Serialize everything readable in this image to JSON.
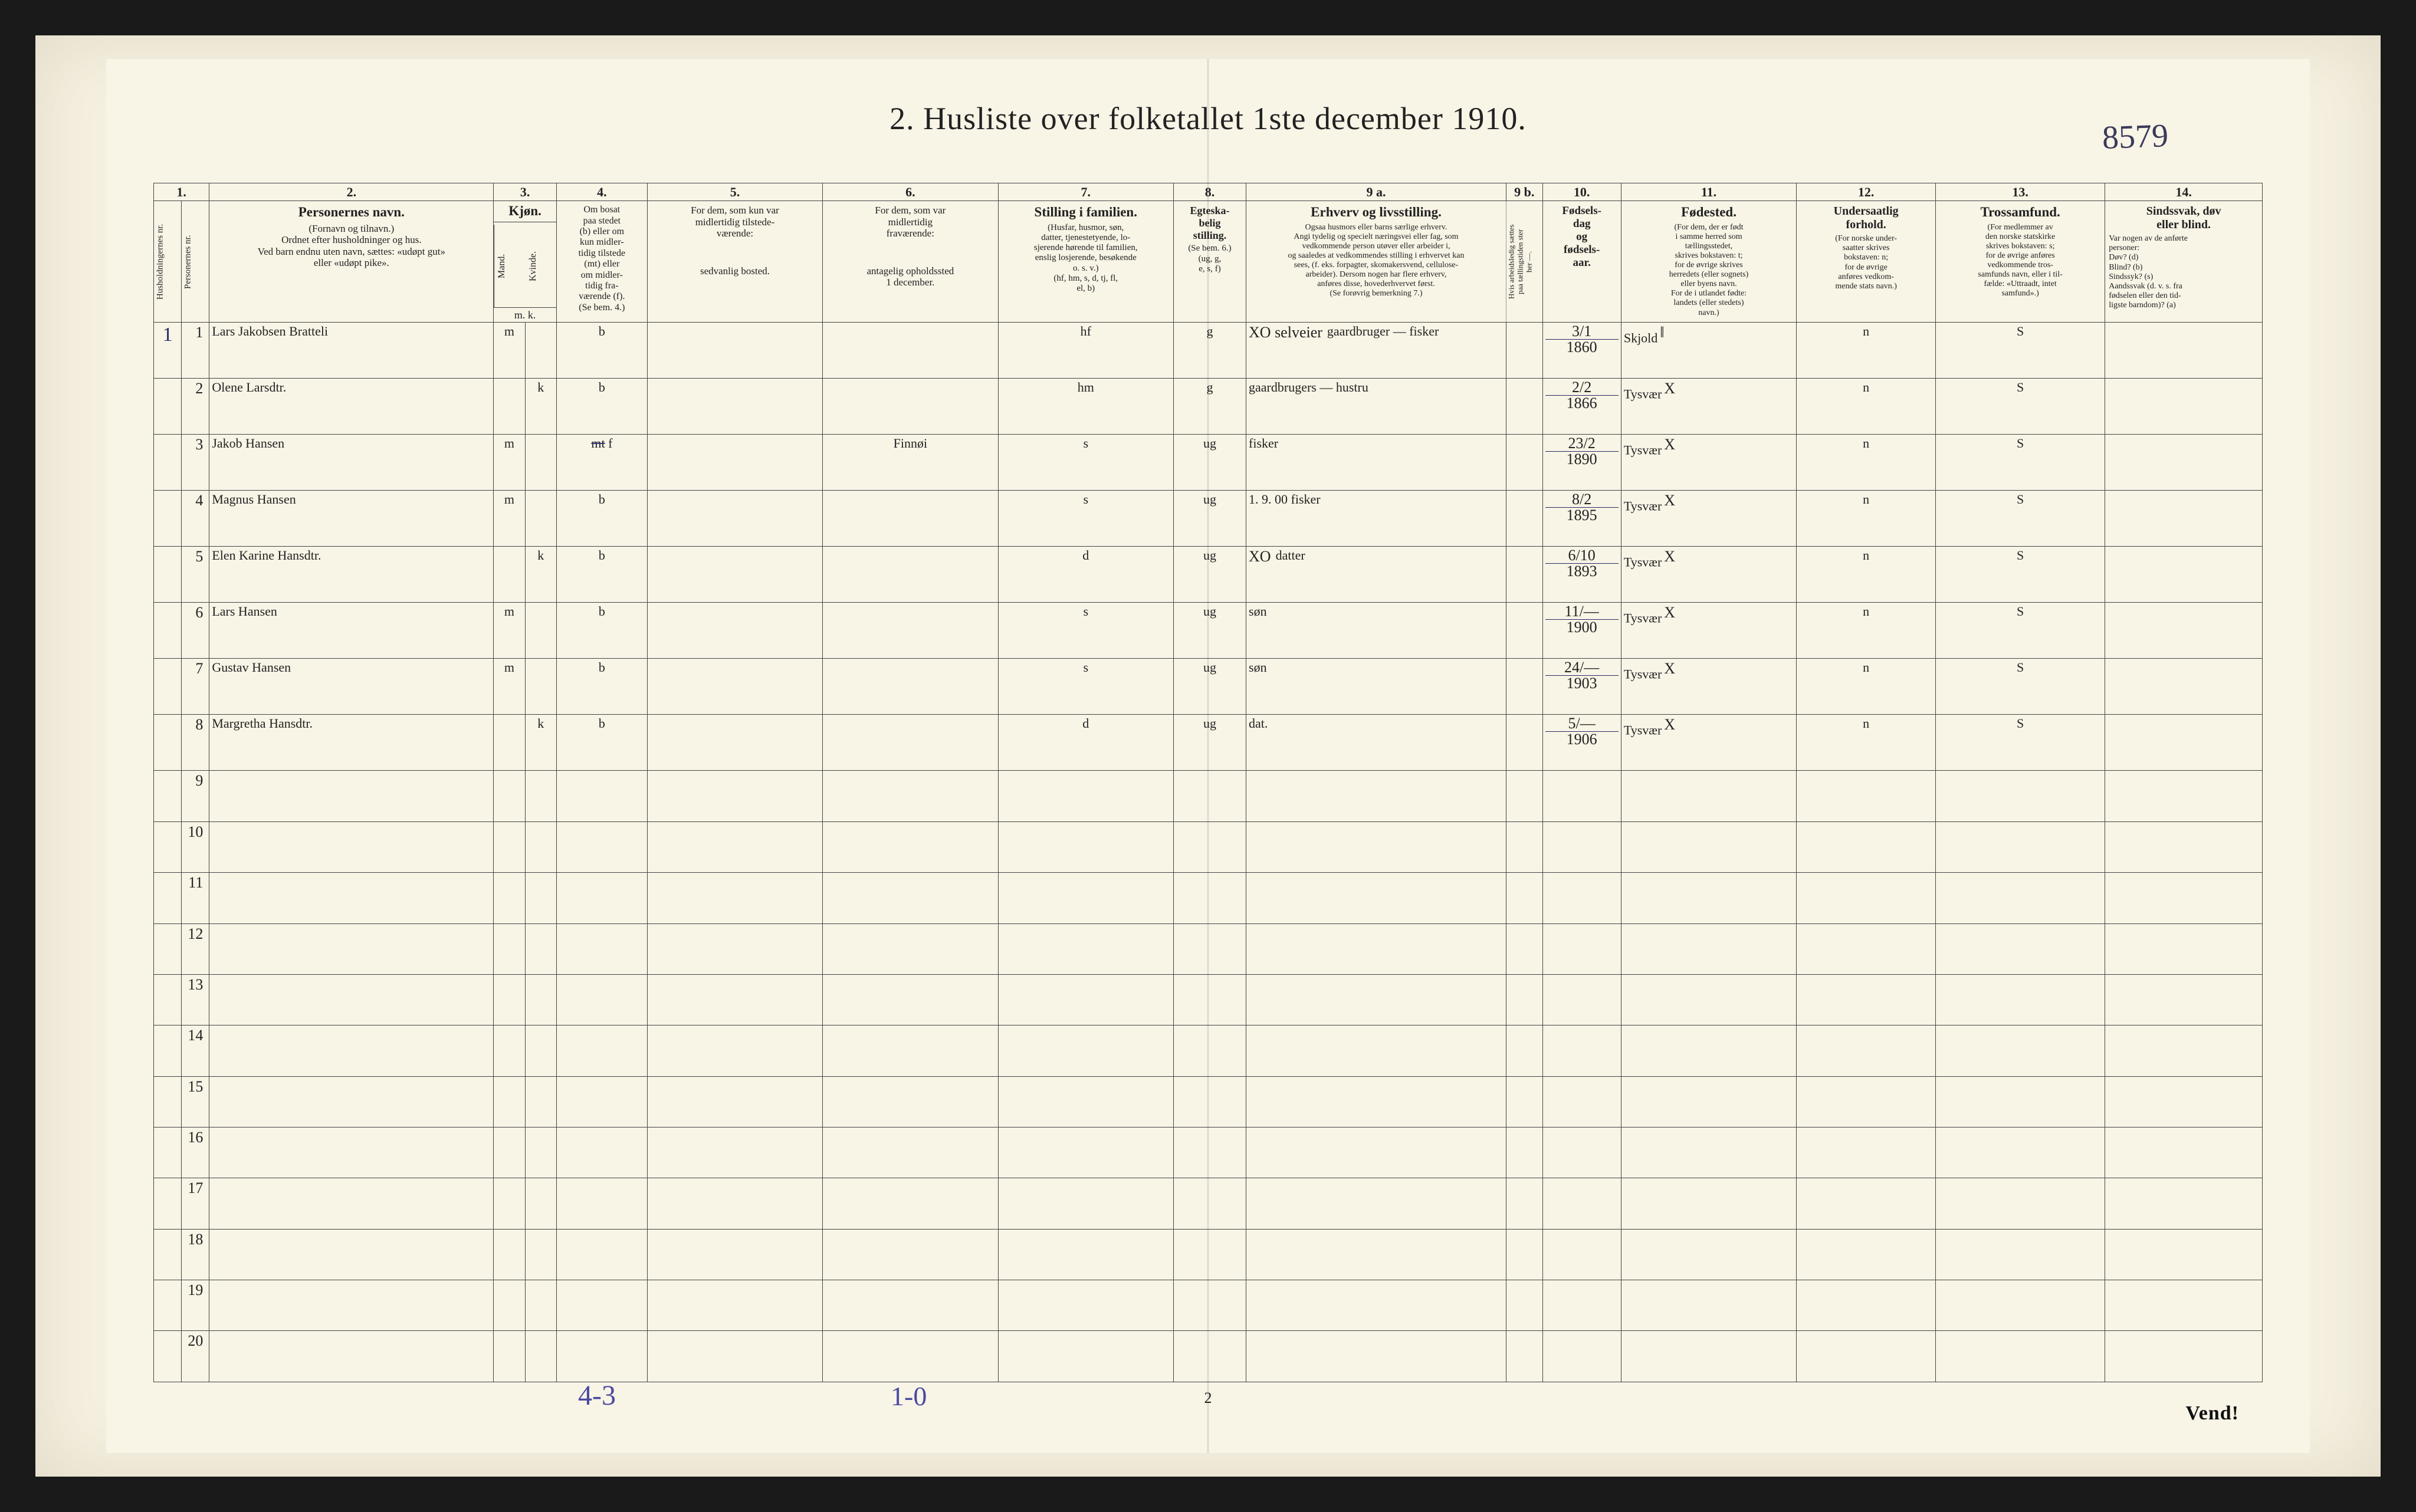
{
  "page": {
    "title": "2.  Husliste over folketallet 1ste december 1910.",
    "corner_note": "8579",
    "footer_handwritten_1": "4-3",
    "footer_handwritten_2": "1-0",
    "footer_printed_center": "2",
    "footer_printed_right": "Vend!"
  },
  "colors": {
    "paper": "#f8f4e6",
    "scan_bg": "#f5f0e0",
    "frame_bg": "#1a1a1a",
    "ink_print": "#222222",
    "ink_hand": "#2a2a60",
    "rule": "#444444"
  },
  "columns": {
    "numbers": [
      "1.",
      "2.",
      "3.",
      "4.",
      "5.",
      "6.",
      "7.",
      "8.",
      "9 a.",
      "9 b.",
      "10.",
      "11.",
      "12.",
      "13.",
      "14."
    ],
    "c1_a": "Husholdningernes nr.",
    "c1_b": "Personernes nr.",
    "c2_title": "Personernes navn.",
    "c2_sub": "(Fornavn og tilnavn.)\nOrdnet efter husholdninger og hus.\nVed barn endnu uten navn, sættes: «udøpt gut»\neller «udøpt pike».",
    "c3_title": "Kjøn.",
    "c3_m": "Mand.",
    "c3_k": "Kvinde.",
    "c3_foot": "m.  k.",
    "c4_title": "Om bosat\npaa stedet\n(b) eller om\nkun midler-\ntidig tilstede\n(mt) eller\nom midler-\ntidig fra-\nværende (f).\n(Se bem. 4.)",
    "c5_title": "For dem, som kun var\nmidlertidig tilstede-\nværende:",
    "c5_sub": "sedvanlig bosted.",
    "c6_title": "For dem, som var\nmidlertidig\nfraværende:",
    "c6_sub": "antagelig opholdssted\n1 december.",
    "c7_title": "Stilling i familien.",
    "c7_sub": "(Husfar, husmor, søn,\ndatter, tjenestetyende, lo-\nsjerende hørende til familien,\nenslig losjerende, besøkende\no. s. v.)\n(hf, hm, s, d, tj, fl,\nel, b)",
    "c8_title": "Egteska-\nbelig\nstilling.",
    "c8_sub": "(Se bem. 6.)\n(ug, g,\ne, s, f)",
    "c9a_title": "Erhverv og livsstilling.",
    "c9a_sub": "Ogsaa husmors eller barns særlige erhverv.\nAngi tydelig og specielt næringsvei eller fag, som\nvedkommende person utøver eller arbeider i,\nog saaledes at vedkommendes stilling i erhvervet kan\nsees, (f. eks. forpagter, skomakersvend, cellulose-\narbeider). Dersom nogen har flere erhverv,\nanføres disse, hovederhvervet først.\n(Se forøvrig bemerkning 7.)",
    "c9b_title": "Hvis arbeidsledig sættes\npaa tællingstiden ster\nher  —.",
    "c10_title": "Fødsels-\ndag\nog\nfødsels-\naar.",
    "c11_title": "Fødested.",
    "c11_sub": "(For dem, der er født\ni samme herred som\ntællingsstedet,\nskrives bokstaven: t;\nfor de øvrige skrives\nherredets (eller sognets)\neller byens navn.\nFor de i utlandet fødte:\nlandets (eller stedets)\nnavn.)",
    "c12_title": "Undersaatlig\nforhold.",
    "c12_sub": "(For norske under-\nsaatter skrives\nbokstaven: n;\nfor de øvrige\nanføres vedkom-\nmende stats navn.)",
    "c13_title": "Trossamfund.",
    "c13_sub": "(For medlemmer av\nden norske statskirke\nskrives bokstaven: s;\nfor de øvrige anføres\nvedkommende tros-\nsamfunds navn, eller i til-\nfælde: «Uttraadt, intet\nsamfund».)",
    "c14_title": "Sindssvak, døv\neller blind.",
    "c14_sub": "Var nogen av de anførte\npersoner:\nDøv?           (d)\nBlind?          (b)\nSindssyk?     (s)\nAandssvak (d. v. s. fra\nfødselen eller den tid-\nligste barndom)? (a)"
  },
  "rows": [
    {
      "hh": "1",
      "pn": "1",
      "name": "Lars Jakobsen Bratteli",
      "sex_m": "m",
      "sex_k": "",
      "res": "b",
      "temp": "",
      "abs": "",
      "fam": "hf",
      "mar": "g",
      "occ_pre": "XO selveier",
      "occ": "gaardbruger — fisker",
      "c9b": "",
      "date_top": "3/1",
      "date_bot": "1860",
      "bplace": "Skjold",
      "bplace_mark": "‖",
      "nat": "n",
      "rel": "S",
      "dis": ""
    },
    {
      "hh": "",
      "pn": "2",
      "name": "Olene Larsdtr.",
      "sex_m": "",
      "sex_k": "k",
      "res": "b",
      "temp": "",
      "abs": "",
      "fam": "hm",
      "mar": "g",
      "occ_pre": "",
      "occ": "gaardbrugers — hustru",
      "c9b": "",
      "date_top": "2/2",
      "date_bot": "1866",
      "bplace": "Tysvær",
      "bplace_mark": "X",
      "nat": "n",
      "rel": "S",
      "dis": ""
    },
    {
      "hh": "",
      "pn": "3",
      "name": "Jakob Hansen",
      "sex_m": "m",
      "sex_k": "",
      "res": "f",
      "res_strike": "mt",
      "temp": "",
      "abs": "Finnøi",
      "fam": "s",
      "mar": "ug",
      "occ_pre": "",
      "occ": "fisker",
      "c9b": "",
      "date_top": "23/2",
      "date_bot": "1890",
      "bplace": "Tysvær",
      "bplace_mark": "X",
      "nat": "n",
      "rel": "S",
      "dis": ""
    },
    {
      "hh": "",
      "pn": "4",
      "name": "Magnus Hansen",
      "sex_m": "m",
      "sex_k": "",
      "res": "b",
      "temp": "",
      "abs": "",
      "fam": "s",
      "mar": "ug",
      "occ_pre": "",
      "occ": "1. 9. 00  fisker",
      "c9b": "",
      "date_top": "8/2",
      "date_bot": "1895",
      "bplace": "Tysvær",
      "bplace_mark": "X",
      "nat": "n",
      "rel": "S",
      "dis": ""
    },
    {
      "hh": "",
      "pn": "5",
      "name": "Elen Karine Hansdtr.",
      "sex_m": "",
      "sex_k": "k",
      "res": "b",
      "temp": "",
      "abs": "",
      "fam": "d",
      "mar": "ug",
      "occ_pre": "XO",
      "occ": "datter",
      "c9b": "",
      "date_top": "6/10",
      "date_bot": "1893",
      "bplace": "Tysvær",
      "bplace_mark": "X",
      "nat": "n",
      "rel": "S",
      "dis": ""
    },
    {
      "hh": "",
      "pn": "6",
      "name": "Lars Hansen",
      "sex_m": "m",
      "sex_k": "",
      "res": "b",
      "temp": "",
      "abs": "",
      "fam": "s",
      "mar": "ug",
      "occ_pre": "",
      "occ": "søn",
      "c9b": "",
      "date_top": "11/—",
      "date_bot": "1900",
      "bplace": "Tysvær",
      "bplace_mark": "X",
      "nat": "n",
      "rel": "S",
      "dis": ""
    },
    {
      "hh": "",
      "pn": "7",
      "name": "Gustav Hansen",
      "sex_m": "m",
      "sex_k": "",
      "res": "b",
      "temp": "",
      "abs": "",
      "fam": "s",
      "mar": "ug",
      "occ_pre": "",
      "occ": "søn",
      "c9b": "",
      "date_top": "24/—",
      "date_bot": "1903",
      "bplace": "Tysvær",
      "bplace_mark": "X",
      "nat": "n",
      "rel": "S",
      "dis": ""
    },
    {
      "hh": "",
      "pn": "8",
      "name": "Margretha Hansdtr.",
      "sex_m": "",
      "sex_k": "k",
      "res": "b",
      "temp": "",
      "abs": "",
      "fam": "d",
      "mar": "ug",
      "occ_pre": "",
      "occ": "dat.",
      "c9b": "",
      "date_top": "5/—",
      "date_bot": "1906",
      "bplace": "Tysvær",
      "bplace_mark": "X",
      "nat": "n",
      "rel": "S",
      "dis": ""
    }
  ],
  "blank_rows": [
    9,
    10,
    11,
    12,
    13,
    14,
    15,
    16,
    17,
    18,
    19,
    20
  ],
  "typography": {
    "title_fontsize_pt": 40,
    "header_fontsize_pt": 14,
    "header_sub_fontsize_pt": 12,
    "hand_fontsize_pt": 27,
    "rownum_fontsize_pt": 19
  }
}
